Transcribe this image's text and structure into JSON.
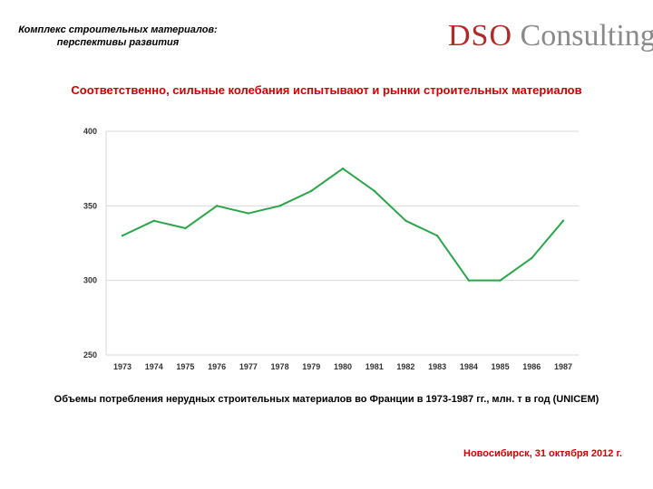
{
  "header": {
    "title_line1": "Комплекс строительных материалов:",
    "title_line2": "перспективы развития"
  },
  "logo": {
    "part1": "DSO",
    "part2": "Consulting"
  },
  "slide_title": "Соответственно, сильные колебания испытывают и рынки строительных материалов",
  "caption": "Объемы потребления нерудных строительных материалов во Франции в 1973-1987 гг., млн. т в год (UNICEM)",
  "footer": "Новосибирск, 31 октября 2012 г.",
  "colors": {
    "series": "#2aa54a",
    "title": "#cc0000",
    "grid": "#d9d9d9",
    "logo_accent": "#b02a2a",
    "logo_gray": "#8a8a8a"
  },
  "chart_data": {
    "type": "line",
    "categories": [
      "1973",
      "1974",
      "1975",
      "1976",
      "1977",
      "1978",
      "1979",
      "1980",
      "1981",
      "1982",
      "1983",
      "1984",
      "1985",
      "1986",
      "1987"
    ],
    "series": [
      {
        "values": [
          330,
          340,
          335,
          350,
          345,
          350,
          360,
          375,
          360,
          340,
          330,
          300,
          300,
          315,
          340
        ]
      }
    ],
    "ylim": [
      250,
      400
    ],
    "yticks": [
      250,
      300,
      350,
      400
    ],
    "grid": true,
    "legend": "none"
  }
}
